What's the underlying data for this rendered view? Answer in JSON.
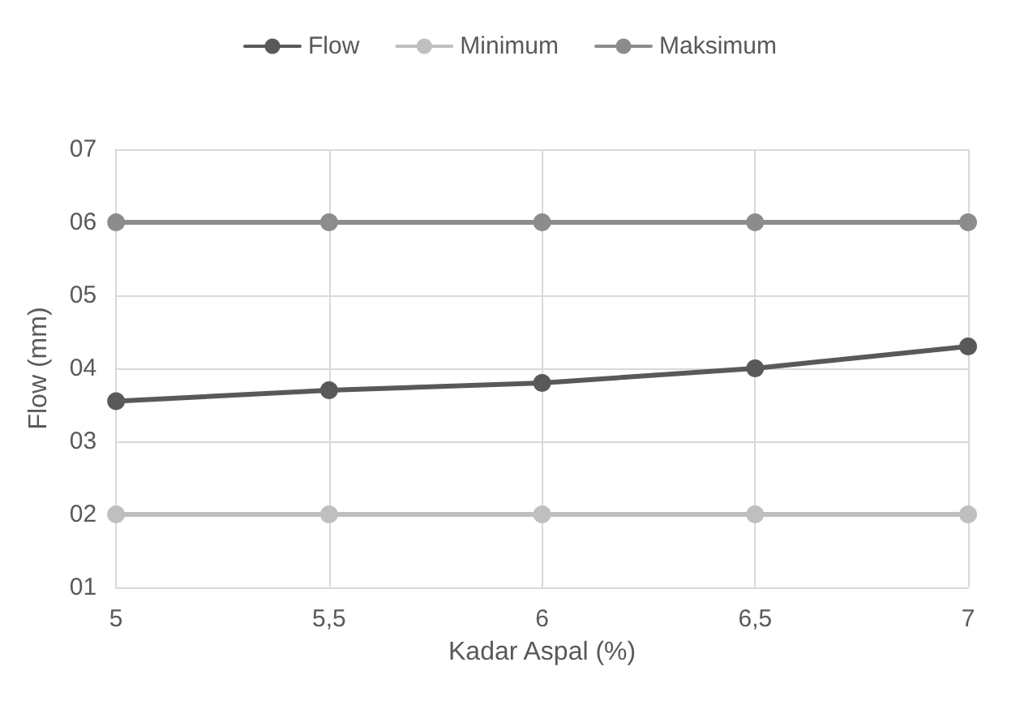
{
  "chart_data": {
    "type": "line",
    "xlabel": "Kadar Aspal (%)",
    "ylabel": "Flow (mm)",
    "x": [
      5,
      5.5,
      6,
      6.5,
      7
    ],
    "series": [
      {
        "name": "Flow",
        "color": "#595959",
        "values": [
          3.55,
          3.7,
          3.8,
          4.0,
          4.3
        ]
      },
      {
        "name": "Minimum",
        "color": "#bfbfbf",
        "values": [
          2,
          2,
          2,
          2,
          2
        ]
      },
      {
        "name": "Maksimum",
        "color": "#8c8c8c",
        "values": [
          6,
          6,
          6,
          6,
          6
        ]
      }
    ],
    "xlim": [
      5,
      7
    ],
    "xticks": [
      5,
      {
        "value": 5.5,
        "label": "5,5"
      },
      6,
      {
        "value": 6.5,
        "label": "6,5"
      },
      7
    ],
    "ylim": [
      1,
      7
    ],
    "yticks": [
      {
        "value": 1,
        "label": "01"
      },
      {
        "value": 2,
        "label": "02"
      },
      {
        "value": 3,
        "label": "03"
      },
      {
        "value": 4,
        "label": "04"
      },
      {
        "value": 5,
        "label": "05"
      },
      {
        "value": 6,
        "label": "06"
      },
      {
        "value": 7,
        "label": "07"
      }
    ],
    "grid": true,
    "legend": "top",
    "marker": "circle",
    "line_style": "solid"
  }
}
